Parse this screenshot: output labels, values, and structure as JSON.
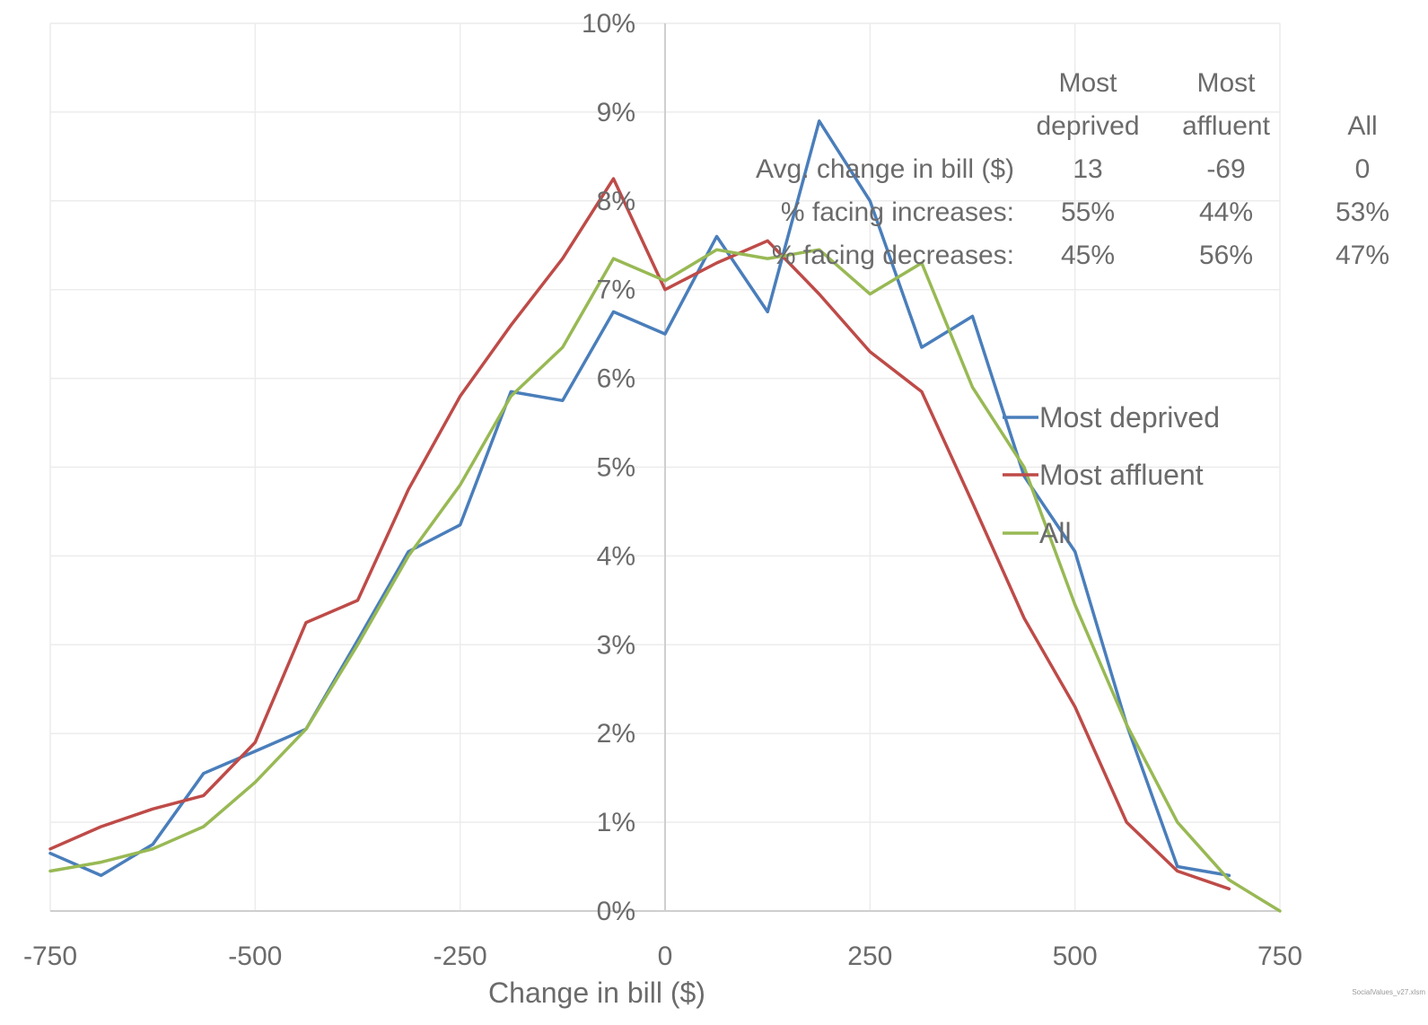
{
  "chart_data": {
    "type": "line",
    "xlabel": "Change in bill ($)",
    "ylabel": "",
    "xlim": [
      -750,
      750
    ],
    "ylim": [
      0,
      10
    ],
    "x_ticks": [
      {
        "value": -750,
        "label": "-750"
      },
      {
        "value": -500,
        "label": "-500"
      },
      {
        "value": -250,
        "label": "-250"
      },
      {
        "value": 0,
        "label": "0"
      },
      {
        "value": 250,
        "label": "250"
      },
      {
        "value": 500,
        "label": "500"
      },
      {
        "value": 750,
        "label": "750"
      }
    ],
    "y_ticks": [
      {
        "value": 0,
        "label": "0%"
      },
      {
        "value": 1,
        "label": "1%"
      },
      {
        "value": 2,
        "label": "2%"
      },
      {
        "value": 3,
        "label": "3%"
      },
      {
        "value": 4,
        "label": "4%"
      },
      {
        "value": 5,
        "label": "5%"
      },
      {
        "value": 6,
        "label": "6%"
      },
      {
        "value": 7,
        "label": "7%"
      },
      {
        "value": 8,
        "label": "8%"
      },
      {
        "value": 9,
        "label": "9%"
      },
      {
        "value": 10,
        "label": "10%"
      }
    ],
    "grid": true,
    "legend_position": "right",
    "series": [
      {
        "name": "Most deprived",
        "color": "#4a7ebb",
        "x": [
          -750,
          -688,
          -625,
          -563,
          -500,
          -438,
          -375,
          -313,
          -250,
          -188,
          -125,
          -63,
          0,
          63,
          125,
          188,
          250,
          313,
          375,
          438,
          500,
          563,
          625,
          688
        ],
        "y": [
          0.65,
          0.4,
          0.75,
          1.55,
          1.8,
          2.05,
          3.05,
          4.05,
          4.35,
          5.85,
          5.75,
          6.75,
          6.5,
          7.6,
          6.75,
          8.9,
          8.0,
          6.35,
          6.7,
          4.9,
          4.05,
          2.1,
          0.5,
          0.4
        ]
      },
      {
        "name": "Most affluent",
        "color": "#be4b48",
        "x": [
          -750,
          -688,
          -625,
          -563,
          -500,
          -438,
          -375,
          -313,
          -250,
          -188,
          -125,
          -63,
          0,
          63,
          125,
          188,
          250,
          313,
          375,
          438,
          500,
          563,
          625,
          688
        ],
        "y": [
          0.7,
          0.95,
          1.15,
          1.3,
          1.9,
          3.25,
          3.5,
          4.75,
          5.8,
          6.6,
          7.35,
          8.25,
          7.0,
          7.3,
          7.55,
          6.95,
          6.3,
          5.85,
          4.6,
          3.3,
          2.3,
          1.0,
          0.45,
          0.25
        ]
      },
      {
        "name": "All",
        "color": "#98b954",
        "x": [
          -750,
          -688,
          -625,
          -563,
          -500,
          -438,
          -375,
          -313,
          -250,
          -188,
          -125,
          -63,
          0,
          63,
          125,
          188,
          250,
          313,
          375,
          438,
          500,
          563,
          625,
          688,
          750
        ],
        "y": [
          0.45,
          0.55,
          0.7,
          0.95,
          1.45,
          2.05,
          3.0,
          4.0,
          4.8,
          5.8,
          6.35,
          7.35,
          7.1,
          7.45,
          7.35,
          7.45,
          6.95,
          7.3,
          5.9,
          5.0,
          3.45,
          2.1,
          1.0,
          0.35,
          0.0
        ]
      }
    ],
    "summary_table": {
      "column_headers": [
        {
          "line1": "Most",
          "line2": "deprived"
        },
        {
          "line1": "Most",
          "line2": "affluent"
        },
        {
          "line1": "",
          "line2": "All"
        }
      ],
      "rows": [
        {
          "label": "Avg. change in bill ($)",
          "values": [
            "13",
            "-69",
            "0"
          ]
        },
        {
          "label": "% facing increases:",
          "values": [
            "55%",
            "44%",
            "53%"
          ]
        },
        {
          "label": "% facing decreases:",
          "values": [
            "45%",
            "56%",
            "47%"
          ]
        }
      ]
    },
    "footnote": "SocialValues_v27.xlsm"
  },
  "colors": {
    "background": "#ffffff",
    "grid": "#ececec",
    "axis": "#cfcfcf",
    "text": "#6b6b6b"
  }
}
